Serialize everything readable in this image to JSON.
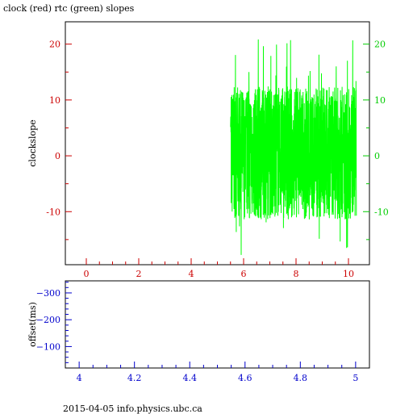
{
  "chart_data": [
    {
      "type": "line",
      "title": "clock (red) rtc (green) slopes",
      "ylabel": "clockslope",
      "xlim": [
        -0.8,
        10.8
      ],
      "ylim": [
        -19.5,
        24
      ],
      "x_ticks": [
        0,
        2,
        4,
        6,
        8,
        10
      ],
      "y_ticks": [
        -10,
        0,
        10,
        20
      ],
      "y2_ticks": [
        -10,
        0,
        10,
        20
      ],
      "colors": {
        "left_axis": "#cc0000",
        "right_axis": "#00cc00",
        "rtc_series": "#00ff00"
      },
      "series": [
        {
          "name": "rtc",
          "color": "#00ff00",
          "x_start": 5.5,
          "x_end": 10.3,
          "y_min": -18,
          "y_max": 21.5,
          "y_typical_range": [
            -12,
            13
          ]
        }
      ]
    },
    {
      "type": "line",
      "ylabel": "offset(ms)",
      "xlim": [
        3.95,
        5.05
      ],
      "ylim": [
        -20,
        -345
      ],
      "x_ticks": [
        4,
        4.2,
        4.4,
        4.6,
        4.8,
        5
      ],
      "x_tick_labels": [
        "4",
        "4.2",
        "4.4",
        "4.6",
        "4.8",
        "5"
      ],
      "y_ticks": [
        -100,
        -200,
        -300
      ],
      "colors": {
        "axis": "#0000cc"
      },
      "series": []
    }
  ],
  "footer": "2015-04-05 info.physics.ubc.ca"
}
